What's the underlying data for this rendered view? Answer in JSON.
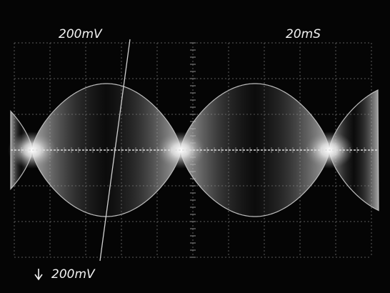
{
  "readouts": {
    "top_left": "200mV",
    "top_right": "20mS",
    "bottom_left": "200mV"
  }
}
